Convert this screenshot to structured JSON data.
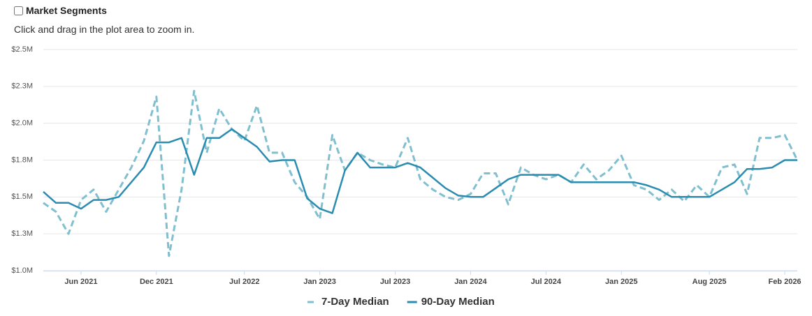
{
  "header": {
    "checkbox_label": "Market Segments",
    "note": "Click and drag in the plot area to zoom in."
  },
  "chart_data": {
    "type": "line",
    "x": [
      "2021-03",
      "2021-04",
      "2021-05",
      "2021-06",
      "2021-07",
      "2021-08",
      "2021-09",
      "2021-10",
      "2021-11",
      "2021-12",
      "2022-01",
      "2022-02",
      "2022-03",
      "2022-04",
      "2022-05",
      "2022-06",
      "2022-07",
      "2022-08",
      "2022-09",
      "2022-10",
      "2022-11",
      "2022-12",
      "2023-01",
      "2023-02",
      "2023-03",
      "2023-04",
      "2023-05",
      "2023-06",
      "2023-07",
      "2023-08",
      "2023-09",
      "2023-10",
      "2023-11",
      "2023-12",
      "2024-01",
      "2024-02",
      "2024-03",
      "2024-04",
      "2024-05",
      "2024-06",
      "2024-07",
      "2024-08",
      "2024-09",
      "2024-10",
      "2024-11",
      "2024-12",
      "2025-01",
      "2025-02",
      "2025-03",
      "2025-04",
      "2025-05",
      "2025-06",
      "2025-07",
      "2025-08",
      "2025-09",
      "2025-10",
      "2025-11",
      "2025-12",
      "2026-01",
      "2026-02",
      "2026-03"
    ],
    "series": [
      {
        "name": "7-Day Median",
        "color": "#80bfcf",
        "dashed": true,
        "values": [
          1.46,
          1.4,
          1.25,
          1.48,
          1.55,
          1.4,
          1.55,
          1.7,
          1.88,
          2.18,
          1.1,
          1.55,
          2.22,
          1.8,
          2.1,
          1.96,
          1.88,
          2.12,
          1.8,
          1.8,
          1.6,
          1.5,
          1.35,
          1.92,
          1.68,
          1.8,
          1.75,
          1.72,
          1.7,
          1.9,
          1.62,
          1.55,
          1.5,
          1.48,
          1.52,
          1.66,
          1.66,
          1.45,
          1.7,
          1.65,
          1.62,
          1.65,
          1.6,
          1.72,
          1.62,
          1.68,
          1.78,
          1.58,
          1.55,
          1.48,
          1.55,
          1.47,
          1.58,
          1.5,
          1.7,
          1.72,
          1.52,
          1.9,
          1.9,
          1.92,
          1.75
        ]
      },
      {
        "name": "90-Day Median",
        "color": "#2a8cb0",
        "dashed": false,
        "values": [
          1.535,
          1.46,
          1.46,
          1.42,
          1.48,
          1.48,
          1.5,
          1.6,
          1.7,
          1.87,
          1.87,
          1.9,
          1.65,
          1.9,
          1.9,
          1.96,
          1.9,
          1.84,
          1.74,
          1.75,
          1.75,
          1.49,
          1.42,
          1.39,
          1.68,
          1.8,
          1.7,
          1.7,
          1.7,
          1.73,
          1.7,
          1.63,
          1.56,
          1.51,
          1.5,
          1.5,
          1.56,
          1.62,
          1.65,
          1.65,
          1.65,
          1.65,
          1.6,
          1.6,
          1.6,
          1.6,
          1.6,
          1.6,
          1.58,
          1.55,
          1.5,
          1.5,
          1.5,
          1.5,
          1.55,
          1.6,
          1.69,
          1.69,
          1.7,
          1.75,
          1.75
        ]
      }
    ],
    "xlim": [
      "2021-03",
      "2026-03"
    ],
    "xticks": [
      {
        "value": "2021-06",
        "label": "Jun 2021"
      },
      {
        "value": "2021-12",
        "label": "Dec 2021"
      },
      {
        "value": "2022-07",
        "label": "Jul 2022"
      },
      {
        "value": "2023-01",
        "label": "Jan 2023"
      },
      {
        "value": "2023-07",
        "label": "Jul 2023"
      },
      {
        "value": "2024-01",
        "label": "Jan 2024"
      },
      {
        "value": "2024-07",
        "label": "Jul 2024"
      },
      {
        "value": "2025-01",
        "label": "Jan 2025"
      },
      {
        "value": "2025-08",
        "label": "Aug 2025"
      },
      {
        "value": "2026-02",
        "label": "Feb 2026"
      }
    ],
    "ylim": [
      1.0,
      2.5
    ],
    "yticks": [
      {
        "value": 1.0,
        "label": "$1.0M"
      },
      {
        "value": 1.25,
        "label": "$1.3M"
      },
      {
        "value": 1.5,
        "label": "$1.5M"
      },
      {
        "value": 1.75,
        "label": "$1.8M"
      },
      {
        "value": 2.0,
        "label": "$2.0M"
      },
      {
        "value": 2.25,
        "label": "$2.3M"
      },
      {
        "value": 2.5,
        "label": "$2.5M"
      }
    ],
    "grid": true,
    "legend": "bottom"
  }
}
